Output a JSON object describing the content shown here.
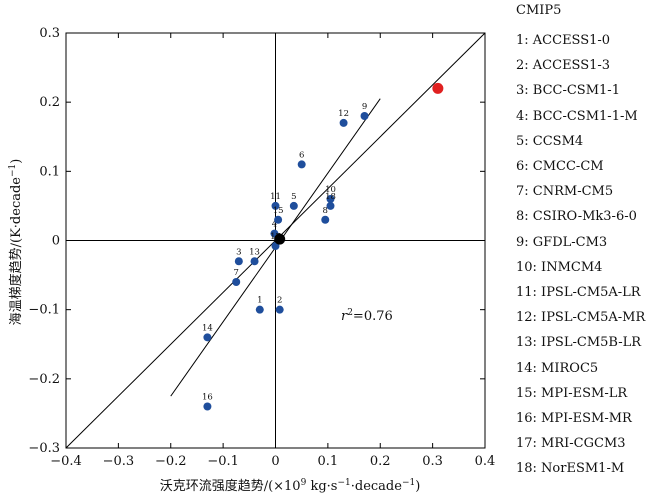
{
  "chart_data": {
    "type": "scatter",
    "xlabel_main": "沃克环流强度趋势/(×10",
    "xlabel_exp": "9",
    "xlabel_rest": " kg·s",
    "xlabel_exp2": "−1",
    "xlabel_rest2": "·decade",
    "xlabel_exp3": "−1",
    "xlabel_end": ")",
    "ylabel_main": "海温梯度趋势/(K·decade",
    "ylabel_exp": "−1",
    "ylabel_end": ")",
    "xlim": [
      -0.4,
      0.4
    ],
    "ylim": [
      -0.3,
      0.3
    ],
    "x_ticks": [
      -0.4,
      -0.3,
      -0.2,
      -0.1,
      0,
      0.1,
      0.2,
      0.3,
      0.4
    ],
    "x_tick_labels": [
      "−0.4",
      "−0.3",
      "−0.2",
      "−0.1",
      "0",
      "0.1",
      "0.2",
      "0.3",
      "0.4"
    ],
    "y_ticks": [
      -0.3,
      -0.2,
      -0.1,
      0,
      0.1,
      0.2,
      0.3
    ],
    "y_tick_labels": [
      "−0.3",
      "−0.2",
      "−0.1",
      "0",
      "0.1",
      "0.2",
      "0.3"
    ],
    "annotation_r": "r",
    "annotation_exp": "2",
    "annotation_value": "=0.76",
    "annotation_pos": [
      0.125,
      -0.115
    ],
    "point_color": "#1f4e9c",
    "obs_color": "#e02020",
    "mean_color": "#000000",
    "points": [
      {
        "label": "1",
        "x": -0.03,
        "y": -0.1
      },
      {
        "label": "2",
        "x": 0.008,
        "y": -0.1
      },
      {
        "label": "3",
        "x": -0.07,
        "y": -0.03
      },
      {
        "label": "4",
        "x": -0.002,
        "y": 0.01
      },
      {
        "label": "5",
        "x": 0.035,
        "y": 0.05
      },
      {
        "label": "6",
        "x": 0.05,
        "y": 0.11
      },
      {
        "label": "7",
        "x": -0.075,
        "y": -0.06
      },
      {
        "label": "8",
        "x": 0.095,
        "y": 0.03
      },
      {
        "label": "9",
        "x": 0.17,
        "y": 0.18
      },
      {
        "label": "10",
        "x": 0.105,
        "y": 0.06
      },
      {
        "label": "11",
        "x": 0.0,
        "y": 0.05
      },
      {
        "label": "12",
        "x": 0.13,
        "y": 0.17
      },
      {
        "label": "13",
        "x": -0.04,
        "y": -0.03
      },
      {
        "label": "14",
        "x": -0.13,
        "y": -0.14
      },
      {
        "label": "15",
        "x": 0.005,
        "y": 0.03
      },
      {
        "label": "16",
        "x": -0.13,
        "y": -0.24
      },
      {
        "label": "17",
        "x": 0.0,
        "y": -0.008
      },
      {
        "label": "18",
        "x": 0.105,
        "y": 0.05
      }
    ],
    "observation": {
      "x": 0.31,
      "y": 0.22
    },
    "ensemble_mean": {
      "x": 0.008,
      "y": 0.002
    },
    "fit_lines": [
      {
        "x": [
          -0.2,
          0.2
        ],
        "y": [
          -0.225,
          0.205
        ]
      },
      {
        "x": [
          -0.4,
          0.4
        ],
        "y": [
          -0.3,
          0.3
        ]
      }
    ],
    "legend_title": "CMIP5",
    "legend_items": [
      "1: ACCESS1-0",
      "2: ACCESS1-3",
      "3: BCC-CSM1-1",
      "4: BCC-CSM1-1-M",
      "5: CCSM4",
      "6: CMCC-CM",
      "7: CNRM-CM5",
      "8: CSIRO-Mk3-6-0",
      "9: GFDL-CM3",
      "10: INMCM4",
      "11: IPSL-CM5A-LR",
      "12: IPSL-CM5A-MR",
      "13: IPSL-CM5B-LR",
      "14: MIROC5",
      "15: MPI-ESM-LR",
      "16: MPI-ESM-MR",
      "17: MRI-CGCM3",
      "18: NorESM1-M"
    ]
  }
}
